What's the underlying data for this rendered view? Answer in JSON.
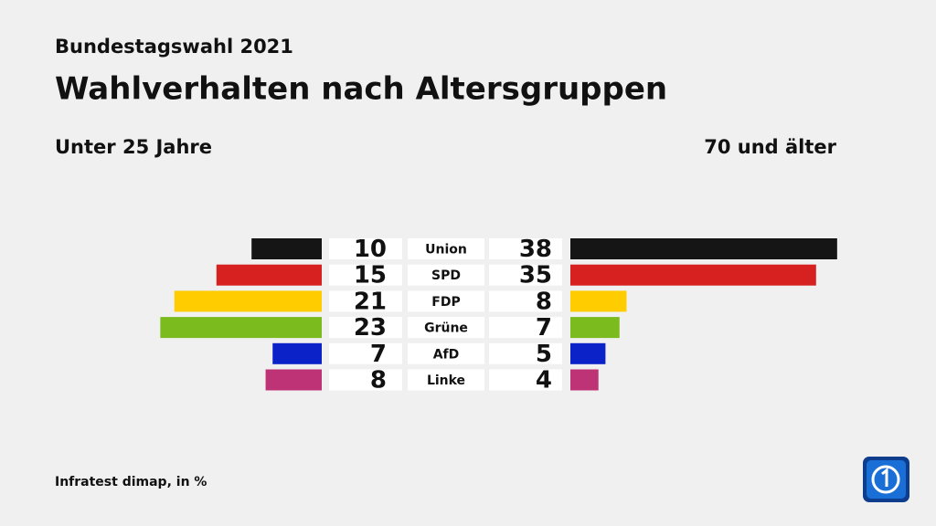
{
  "chart_data": {
    "type": "butterfly",
    "kicker": "Bundestagswahl 2021",
    "title": "Wahlverhalten nach Altersgruppen",
    "source": "Infratest dimap, in %",
    "categories": [
      "Union",
      "SPD",
      "FDP",
      "Grüne",
      "AfD",
      "Linke"
    ],
    "colors": [
      "#151515",
      "#d72121",
      "#ffcc00",
      "#7bbb1e",
      "#0a22c8",
      "#be3375"
    ],
    "series": [
      {
        "name": "Unter 25 Jahre",
        "values": [
          10,
          15,
          21,
          23,
          7,
          8
        ]
      },
      {
        "name": "70 und älter",
        "values": [
          38,
          35,
          8,
          7,
          5,
          4
        ]
      }
    ]
  }
}
